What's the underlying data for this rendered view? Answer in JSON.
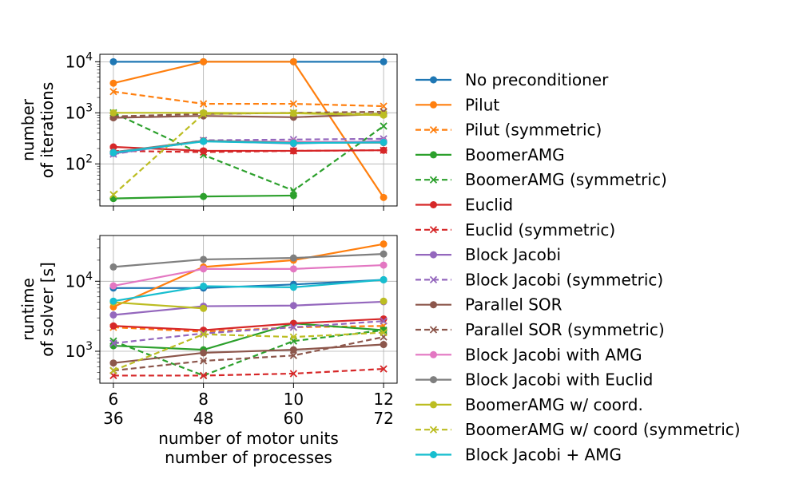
{
  "chart_data": [
    {
      "type": "line",
      "ylabel_lines": [
        "number",
        "of iterations"
      ],
      "yscale": "log",
      "ylim": [
        15,
        14000
      ],
      "xlim": [
        5.7,
        12.3
      ],
      "x": [
        6,
        8,
        10,
        12
      ],
      "grid": true,
      "yticks": [
        {
          "value": 100,
          "base": "10",
          "exp": "2"
        },
        {
          "value": 1000,
          "base": "10",
          "exp": "3"
        },
        {
          "value": 10000,
          "base": "10",
          "exp": "4"
        }
      ],
      "series": [
        {
          "name": "No preconditioner",
          "values": [
            10000,
            10000,
            10000,
            10000
          ]
        },
        {
          "name": "Pilut",
          "values": [
            3800,
            10000,
            10000,
            22
          ]
        },
        {
          "name": "Pilut (symmetric)",
          "values": [
            2600,
            1500,
            1500,
            1350
          ]
        },
        {
          "name": "BoomerAMG",
          "values": [
            21,
            23,
            24,
            null
          ]
        },
        {
          "name": "BoomerAMG (symmetric)",
          "values": [
            1000,
            150,
            30,
            550
          ]
        },
        {
          "name": "Euclid",
          "values": [
            215,
            180,
            180,
            185
          ]
        },
        {
          "name": "Euclid (symmetric)",
          "values": [
            180,
            170,
            180,
            185
          ]
        },
        {
          "name": "Block Jacobi",
          "values": [
            160,
            280,
            250,
            280
          ]
        },
        {
          "name": "Block Jacobi (symmetric)",
          "values": [
            155,
            290,
            300,
            310
          ]
        },
        {
          "name": "Parallel SOR",
          "values": [
            800,
            870,
            820,
            950
          ]
        },
        {
          "name": "Parallel SOR (symmetric)",
          "values": [
            850,
            950,
            1000,
            1050
          ]
        },
        {
          "name": "Block Jacobi with AMG",
          "values": [
            170,
            280,
            270,
            270
          ]
        },
        {
          "name": "Block Jacobi with Euclid",
          "values": [
            170,
            285,
            260,
            260
          ]
        },
        {
          "name": "BoomerAMG w/ coord.",
          "values": [
            1000,
            1000,
            980,
            900
          ]
        },
        {
          "name": "BoomerAMG w/ coord (symmetric)",
          "values": [
            25,
            950,
            1000,
            950
          ]
        },
        {
          "name": "Block Jacobi + AMG",
          "values": [
            165,
            275,
            255,
            265
          ]
        }
      ]
    },
    {
      "type": "line",
      "ylabel_lines": [
        "runtime",
        "of solver [s]"
      ],
      "yscale": "log",
      "ylim": [
        350,
        45000
      ],
      "xlim": [
        5.7,
        12.3
      ],
      "x": [
        6,
        8,
        10,
        12
      ],
      "grid": true,
      "yticks": [
        {
          "value": 1000,
          "base": "10",
          "exp": "3"
        },
        {
          "value": 10000,
          "base": "10",
          "exp": "4"
        }
      ],
      "xticks": [
        "6",
        "8",
        "10",
        "12"
      ],
      "xticks2": [
        "36",
        "48",
        "60",
        "72"
      ],
      "xlabel_lines": [
        "number of motor units",
        "number of processes"
      ],
      "series": [
        {
          "name": "No preconditioner",
          "values": [
            8000,
            8000,
            9000,
            10500
          ]
        },
        {
          "name": "Pilut",
          "values": [
            4300,
            16000,
            20000,
            34000
          ]
        },
        {
          "name": "Pilut (symmetric)",
          "values": [
            2200,
            1900,
            2200,
            2300
          ]
        },
        {
          "name": "BoomerAMG",
          "values": [
            1200,
            1050,
            2500,
            2000
          ]
        },
        {
          "name": "BoomerAMG (symmetric)",
          "values": [
            1400,
            450,
            1400,
            2000
          ]
        },
        {
          "name": "Euclid",
          "values": [
            2300,
            2000,
            2500,
            2900
          ]
        },
        {
          "name": "Euclid (symmetric)",
          "values": [
            450,
            450,
            480,
            560
          ]
        },
        {
          "name": "Block Jacobi",
          "values": [
            3300,
            4400,
            4500,
            5100
          ]
        },
        {
          "name": "Block Jacobi (symmetric)",
          "values": [
            1300,
            1800,
            2200,
            2700
          ]
        },
        {
          "name": "Parallel SOR",
          "values": [
            680,
            950,
            1050,
            1250
          ]
        },
        {
          "name": "Parallel SOR (symmetric)",
          "values": [
            530,
            730,
            870,
            1600
          ]
        },
        {
          "name": "Block Jacobi with AMG",
          "values": [
            8600,
            15000,
            15000,
            17000
          ]
        },
        {
          "name": "Block Jacobi with Euclid",
          "values": [
            16000,
            20500,
            21500,
            24500
          ]
        },
        {
          "name": "BoomerAMG w/ coord.",
          "values": [
            5000,
            4100,
            null,
            5200
          ]
        },
        {
          "name": "BoomerAMG w/ coord (symmetric)",
          "values": [
            530,
            1750,
            1600,
            1850
          ]
        },
        {
          "name": "Block Jacobi + AMG",
          "values": [
            5200,
            8500,
            8200,
            10500
          ]
        }
      ]
    }
  ],
  "legend": {
    "placement": "right",
    "items": [
      {
        "label": "No preconditioner",
        "color": "#1f77b4",
        "dash": false,
        "marker": "circle"
      },
      {
        "label": "Pilut",
        "color": "#ff7f0e",
        "dash": false,
        "marker": "circle"
      },
      {
        "label": "Pilut (symmetric)",
        "color": "#ff7f0e",
        "dash": true,
        "marker": "x"
      },
      {
        "label": "BoomerAMG",
        "color": "#2ca02c",
        "dash": false,
        "marker": "circle"
      },
      {
        "label": "BoomerAMG (symmetric)",
        "color": "#2ca02c",
        "dash": true,
        "marker": "x"
      },
      {
        "label": "Euclid",
        "color": "#d62728",
        "dash": false,
        "marker": "circle"
      },
      {
        "label": "Euclid (symmetric)",
        "color": "#d62728",
        "dash": true,
        "marker": "x"
      },
      {
        "label": "Block Jacobi",
        "color": "#9467bd",
        "dash": false,
        "marker": "circle"
      },
      {
        "label": "Block Jacobi (symmetric)",
        "color": "#9467bd",
        "dash": true,
        "marker": "x"
      },
      {
        "label": "Parallel SOR",
        "color": "#8c564b",
        "dash": false,
        "marker": "circle"
      },
      {
        "label": "Parallel SOR (symmetric)",
        "color": "#8c564b",
        "dash": true,
        "marker": "x"
      },
      {
        "label": "Block Jacobi with AMG",
        "color": "#e377c2",
        "dash": false,
        "marker": "circle"
      },
      {
        "label": "Block Jacobi with Euclid",
        "color": "#7f7f7f",
        "dash": false,
        "marker": "circle"
      },
      {
        "label": "BoomerAMG w/ coord.",
        "color": "#bcbd22",
        "dash": false,
        "marker": "circle"
      },
      {
        "label": "BoomerAMG w/ coord (symmetric)",
        "color": "#bcbd22",
        "dash": true,
        "marker": "x"
      },
      {
        "label": "Block Jacobi + AMG",
        "color": "#17becf",
        "dash": false,
        "marker": "circle"
      }
    ]
  }
}
